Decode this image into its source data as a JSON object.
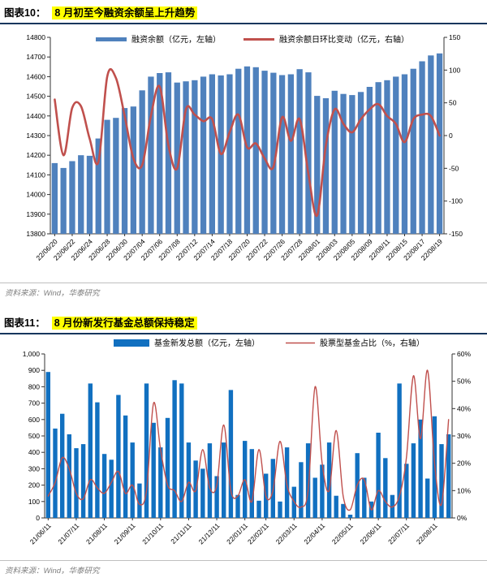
{
  "figures": [
    {
      "label": "图表10：",
      "title": "8 月初至今融资余额呈上升趋势",
      "source": "资料来源：Wind，华泰研究"
    },
    {
      "label": "图表11：",
      "title": "8 月份新发行基金总额保持稳定",
      "source": "资料来源：Wind，华泰研究"
    }
  ],
  "colors": {
    "fig10_bar": "#4F81BD",
    "fig10_line": "#C0504D",
    "fig11_bar": "#1170C0",
    "fig11_line": "#C0504D",
    "highlight": "#FFFF00",
    "title_rule": "#17365D",
    "source_text": "#7F7F7F",
    "axis": "#333333"
  },
  "chart_data": [
    {
      "type": "bar",
      "combo": "bar+line",
      "title": "8 月初至今融资余额呈上升趋势",
      "grid": false,
      "legend_position": "top",
      "x_labels": [
        "22/06/20",
        "22/06/22",
        "22/06/24",
        "22/06/28",
        "22/06/30",
        "22/07/04",
        "22/07/06",
        "22/07/08",
        "22/07/12",
        "22/07/14",
        "22/07/18",
        "22/07/20",
        "22/07/22",
        "22/07/26",
        "22/07/28",
        "22/08/01",
        "22/08/03",
        "22/08/05",
        "22/08/09",
        "22/08/11",
        "22/08/15",
        "22/08/17",
        "22/08/19"
      ],
      "x_label_indices": [
        0,
        2,
        4,
        6,
        8,
        10,
        12,
        14,
        16,
        18,
        20,
        22,
        24,
        26,
        28,
        30,
        32,
        34,
        36,
        38,
        40,
        42,
        44
      ],
      "series": [
        {
          "name": "融资余额（亿元，左轴）",
          "type": "bar",
          "axis": "left",
          "color": "#4F81BD",
          "values": [
            14160,
            14135,
            14170,
            14200,
            14197,
            14285,
            14380,
            14390,
            14440,
            14448,
            14530,
            14600,
            14618,
            14622,
            14570,
            14576,
            14582,
            14600,
            14612,
            14606,
            14612,
            14640,
            14652,
            14648,
            14630,
            14620,
            14608,
            14612,
            14638,
            14622,
            14502,
            14490,
            14528,
            14512,
            14506,
            14522,
            14548,
            14572,
            14582,
            14600,
            14612,
            14640,
            14678,
            14708,
            14718
          ]
        },
        {
          "name": "融资余额日环比变动（亿元，右轴）",
          "type": "line",
          "axis": "right",
          "color": "#C0504D",
          "values": [
            55,
            -30,
            42,
            45,
            -5,
            -40,
            90,
            88,
            30,
            -35,
            -45,
            30,
            75,
            -15,
            -50,
            40,
            32,
            22,
            25,
            -28,
            5,
            32,
            -18,
            -12,
            -35,
            -48,
            28,
            -8,
            25,
            -58,
            -122,
            -15,
            40,
            18,
            5,
            25,
            40,
            48,
            30,
            18,
            -10,
            25,
            32,
            30,
            0
          ]
        }
      ],
      "left_axis": {
        "min": 13800,
        "max": 14800,
        "step": 100,
        "ticks": [
          "14800",
          "14700",
          "14600",
          "14500",
          "14400",
          "14300",
          "14200",
          "14100",
          "14000",
          "13900",
          "13800"
        ]
      },
      "right_axis": {
        "min": -150,
        "max": 150,
        "step": 50,
        "ticks": [
          "150",
          "100",
          "50",
          "0",
          "-50",
          "-100",
          "-150"
        ]
      }
    },
    {
      "type": "bar",
      "combo": "bar+line",
      "title": "8 月份新发行基金总额保持稳定",
      "grid": false,
      "legend_position": "top",
      "x_labels": [
        "21/06/11",
        "21/07/11",
        "21/08/11",
        "21/09/11",
        "21/10/11",
        "21/11/11",
        "21/12/11",
        "22/01/11",
        "22/02/11",
        "22/03/11",
        "22/04/11",
        "22/05/11",
        "22/06/11",
        "22/07/11",
        "22/08/11"
      ],
      "x_label_indices": [
        0,
        4,
        8,
        12,
        16,
        20,
        24,
        28,
        31,
        35,
        39,
        43,
        47,
        51,
        55
      ],
      "series": [
        {
          "name": "基金新发总额（亿元，左轴）",
          "type": "bar",
          "axis": "left",
          "color": "#1170C0",
          "values": [
            890,
            545,
            635,
            510,
            425,
            450,
            820,
            705,
            390,
            355,
            750,
            625,
            460,
            210,
            820,
            580,
            430,
            610,
            840,
            820,
            460,
            350,
            300,
            455,
            255,
            460,
            780,
            140,
            470,
            420,
            105,
            270,
            360,
            100,
            430,
            190,
            340,
            455,
            245,
            325,
            460,
            135,
            85,
            20,
            395,
            245,
            100,
            520,
            365,
            140,
            820,
            330,
            455,
            600,
            240,
            620,
            450,
            510
          ]
        },
        {
          "name": "股票型基金占比（%，右轴）",
          "type": "line",
          "axis": "right",
          "color": "#C0504D",
          "values": [
            8,
            13,
            22,
            18,
            9,
            7,
            14,
            11,
            9,
            13,
            17,
            9,
            12,
            5,
            10,
            42,
            25,
            12,
            10,
            6,
            13,
            10,
            25,
            11,
            12,
            34,
            10,
            8,
            14,
            6,
            25,
            8,
            10,
            28,
            12,
            6,
            4,
            10,
            48,
            20,
            10,
            32,
            8,
            3,
            12,
            14,
            3,
            10,
            6,
            4,
            8,
            22,
            52,
            29,
            54,
            20,
            5,
            36
          ]
        }
      ],
      "left_axis": {
        "min": 0,
        "max": 1000,
        "step": 100,
        "ticks": [
          "1,000",
          "900",
          "800",
          "700",
          "600",
          "500",
          "400",
          "300",
          "200",
          "100",
          "0"
        ]
      },
      "right_axis": {
        "min": 0,
        "max": 60,
        "step": 10,
        "ticks": [
          "60%",
          "50%",
          "40%",
          "30%",
          "20%",
          "10%",
          "0%"
        ]
      }
    }
  ]
}
